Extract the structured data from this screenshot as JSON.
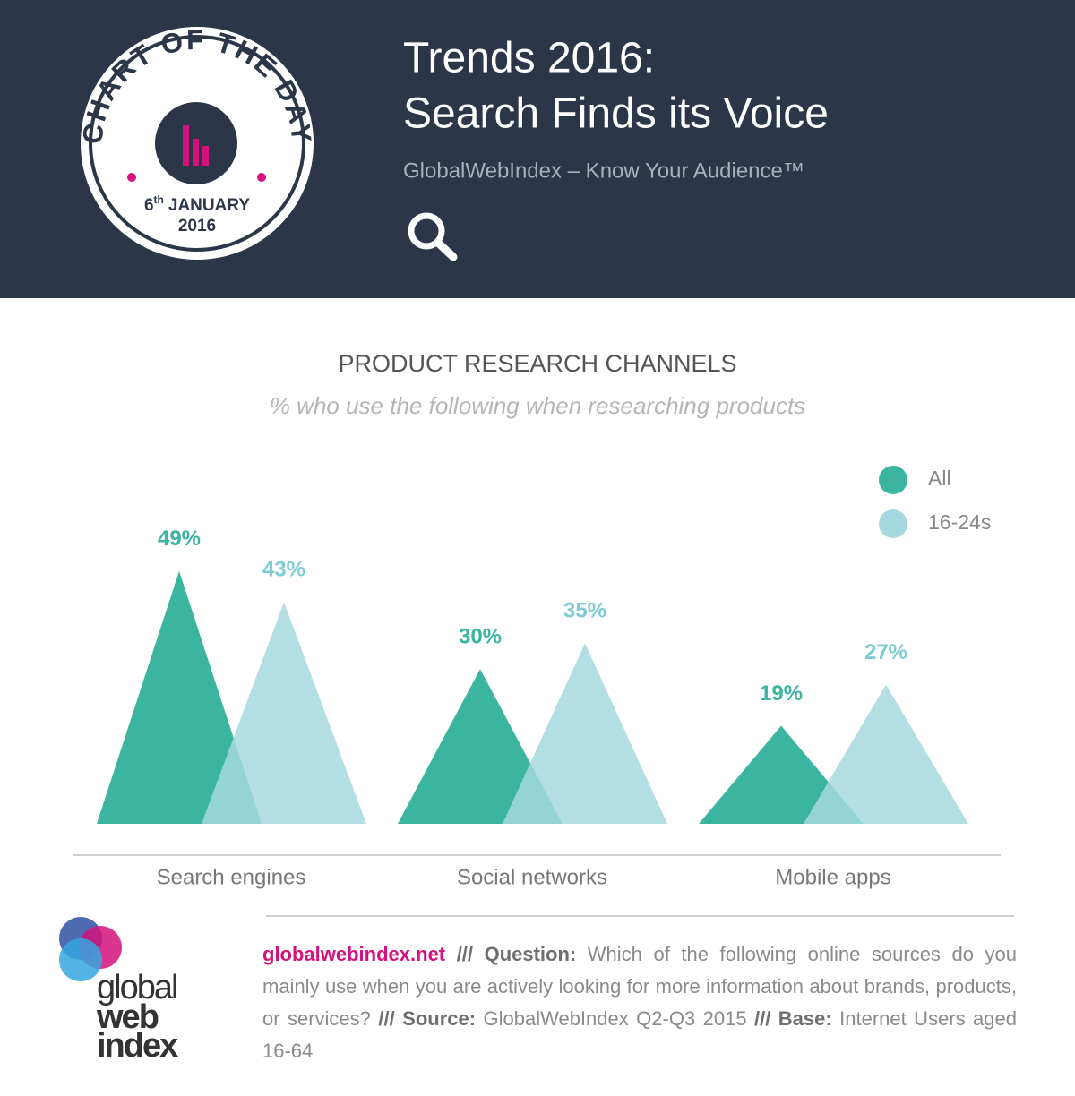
{
  "header": {
    "title_line1": "Trends 2016:",
    "title_line2": "Search Finds its Voice",
    "subtitle": "GlobalWebIndex – Know Your Audience™"
  },
  "badge": {
    "title": "CHART OF THE DAY",
    "day": "6",
    "day_suffix": "th",
    "month": "JANUARY",
    "year": "2016"
  },
  "chart_data": {
    "type": "bar",
    "shape": "triangle",
    "title": "PRODUCT RESEARCH CHANNELS",
    "subtitle": "% who use the following when researching products",
    "categories": [
      "Search engines",
      "Social networks",
      "Mobile apps"
    ],
    "series": [
      {
        "name": "All",
        "color": "#3bb5a0",
        "values": [
          49,
          30,
          19
        ],
        "value_labels": [
          "49%",
          "30%",
          "19%"
        ]
      },
      {
        "name": "16-24s",
        "color": "#a6d9df",
        "values": [
          43,
          35,
          27
        ],
        "value_labels": [
          "43%",
          "35%",
          "27%"
        ]
      }
    ],
    "legend": "top-right"
  },
  "footer": {
    "site": "globalwebindex.net",
    "separator": "///",
    "question_label": "Question:",
    "question": "Which of the following online sources do you mainly use when you are actively looking for more information about brands, products, or services?",
    "source_label": "Source:",
    "source": "GlobalWebIndex Q2-Q3 2015",
    "base_label": "Base:",
    "base": "Internet Users aged 16-64"
  },
  "logo": {
    "line1": "global",
    "line2": "web",
    "line3": "index"
  }
}
